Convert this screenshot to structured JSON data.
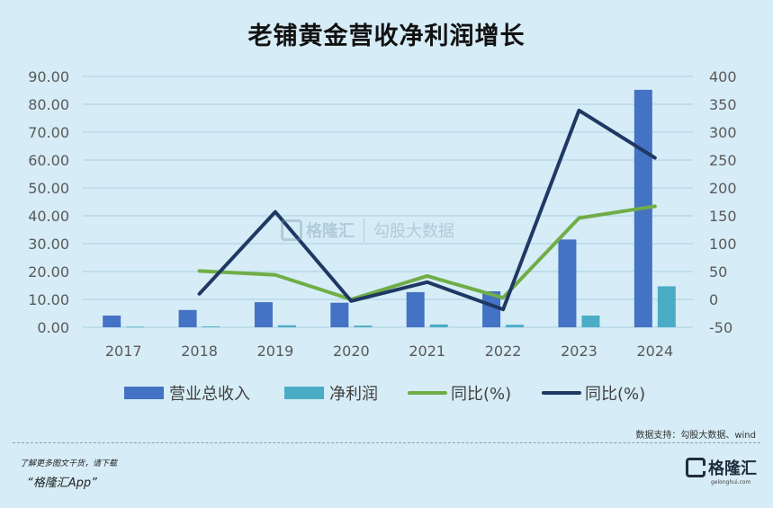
{
  "title": "老铺黄金营收净利润增长",
  "source_note": "数据支持：勾股大数据、wind",
  "promo": {
    "line1": "了解更多图文干货，请下载",
    "line2": "“格隆汇App”"
  },
  "logo": {
    "text": "格隆汇",
    "sub": "gelonghui.com"
  },
  "watermark": {
    "left": "格隆汇",
    "right": "勾股大数据"
  },
  "colors": {
    "revenue": "#4472c4",
    "profit": "#4bacc6",
    "yoy_revenue": "#70ad47",
    "yoy_profit": "#1f3864",
    "grid": "#a9cfe3",
    "background": "#d6ecf6"
  },
  "chart_data": {
    "type": "bar",
    "title": "老铺黄金营收净利润增长",
    "categories": [
      "2017",
      "2018",
      "2019",
      "2020",
      "2021",
      "2022",
      "2023",
      "2024"
    ],
    "left_axis": {
      "ylim": [
        0,
        90
      ],
      "ticks": [
        "0.00",
        "10.00",
        "20.00",
        "30.00",
        "40.00",
        "50.00",
        "60.00",
        "70.00",
        "80.00",
        "90.00"
      ]
    },
    "right_axis": {
      "ylim": [
        -50,
        400
      ],
      "ticks": [
        "-50",
        "0",
        "50",
        "100",
        "150",
        "200",
        "250",
        "300",
        "350",
        "400"
      ]
    },
    "series": [
      {
        "name": "营业总收入",
        "kind": "bar",
        "axis": "left",
        "color": "#4472c4",
        "values": [
          4.2,
          6.2,
          9.0,
          8.8,
          12.6,
          12.9,
          31.5,
          85.2
        ]
      },
      {
        "name": "净利润",
        "kind": "bar",
        "axis": "left",
        "color": "#4bacc6",
        "values": [
          0.2,
          0.3,
          0.7,
          0.6,
          1.0,
          0.9,
          4.2,
          14.7
        ]
      },
      {
        "name": "同比(%)",
        "kind": "line",
        "axis": "right",
        "color": "#70ad47",
        "values": [
          null,
          51,
          44,
          0,
          42,
          3,
          146,
          167
        ]
      },
      {
        "name": "同比(%)",
        "kind": "line",
        "axis": "right",
        "color": "#1f3864",
        "values": [
          null,
          10,
          157,
          -3,
          31,
          -18,
          339,
          254
        ]
      }
    ],
    "grid": true,
    "legend": "bottom"
  }
}
